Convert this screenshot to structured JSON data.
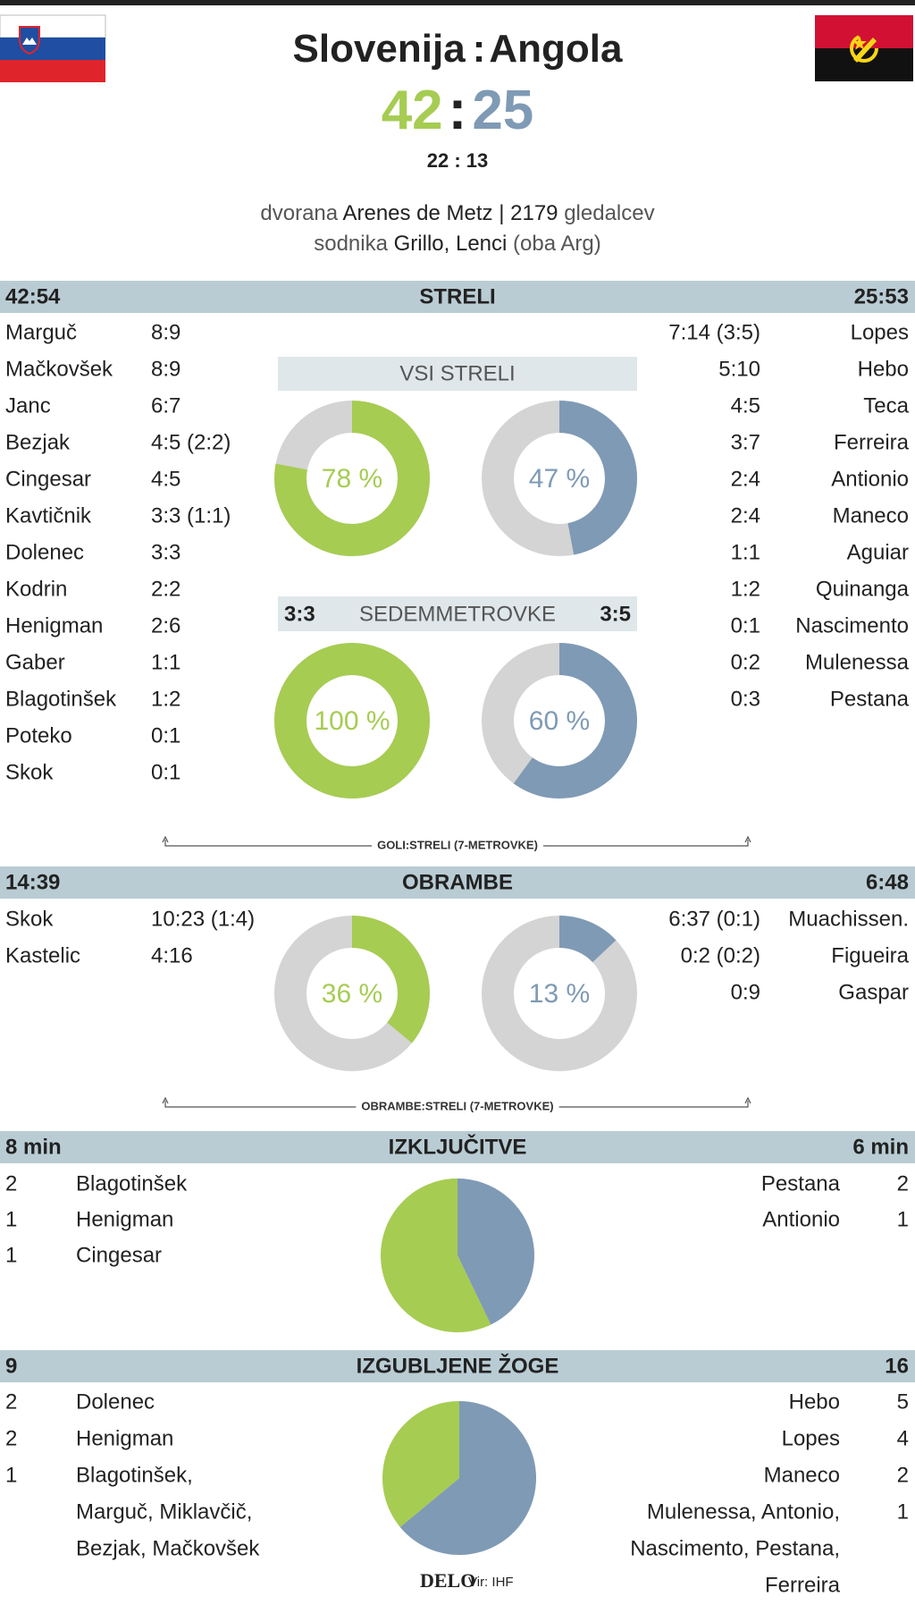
{
  "header": {
    "home": "Slovenija",
    "separator": ":",
    "away": "Angola",
    "score_home": 42,
    "score_separator": ":",
    "score_away": 25,
    "halftime": "22 : 13",
    "venue": {
      "label": "dvorana",
      "value": "Arenes de Metz | 2179",
      "suffix": "gledalcev"
    },
    "referees": {
      "label": "sodnika",
      "value": "Grillo, Lenci",
      "suffix": "(oba Arg)"
    }
  },
  "shots": {
    "home_total": "42:54",
    "title": "STRELI",
    "away_total": "25:53",
    "home_players": [
      [
        "Marguč",
        "8:9"
      ],
      [
        "Mačkovšek",
        "8:9"
      ],
      [
        "Janc",
        "6:7"
      ],
      [
        "Bezjak",
        "4:5 (2:2)"
      ],
      [
        "Cingesar",
        "4:5"
      ],
      [
        "Kavtičnik",
        "3:3 (1:1)"
      ],
      [
        "Dolenec",
        "3:3"
      ],
      [
        "Kodrin",
        "2:2"
      ],
      [
        "Henigman",
        "2:6"
      ],
      [
        "Gaber",
        "1:1"
      ],
      [
        "Blagotinšek",
        "1:2"
      ],
      [
        "Poteko",
        "0:1"
      ],
      [
        "Skok",
        "0:1"
      ]
    ],
    "away_players": [
      [
        "7:14 (3:5)",
        "Lopes"
      ],
      [
        "5:10",
        "Hebo"
      ],
      [
        "4:5",
        "Teca"
      ],
      [
        "3:7",
        "Ferreira"
      ],
      [
        "2:4",
        "Antionio"
      ],
      [
        "2:4",
        "Maneco"
      ],
      [
        "1:1",
        "Aguiar"
      ],
      [
        "1:2",
        "Quinanga"
      ],
      [
        "0:1",
        "Nascimento"
      ],
      [
        "0:2",
        "Mulenessa"
      ],
      [
        "0:3",
        "Pestana"
      ]
    ],
    "all_shots": {
      "title": "VSI STRELI",
      "home": {
        "value": 78,
        "label": "78 %"
      },
      "away": {
        "value": 47,
        "label": "47 %"
      }
    },
    "seven_m": {
      "home_total": "3:3",
      "title": "SEDEMMETROVKE",
      "away_total": "3:5",
      "home": {
        "value": 100,
        "label": "100 %"
      },
      "away": {
        "value": 60,
        "label": "60 %"
      }
    },
    "note": "GOLI:STRELI (7-METROVKE)"
  },
  "saves": {
    "home_total": "14:39",
    "title": "OBRAMBE",
    "away_total": "6:48",
    "home_players": [
      [
        "Skok",
        "10:23 (1:4)"
      ],
      [
        "Kastelic",
        "4:16"
      ]
    ],
    "away_players": [
      [
        "6:37 (0:1)",
        "Muachissen."
      ],
      [
        "0:2 (0:2)",
        "Figueira"
      ],
      [
        "0:9",
        "Gaspar"
      ]
    ],
    "home": {
      "value": 36,
      "label": "36 %"
    },
    "away": {
      "value": 13,
      "label": "13 %"
    },
    "note": "OBRAMBE:STRELI (7-METROVKE)"
  },
  "exclusions": {
    "home_total": {
      "value": 8,
      "label": "8 min"
    },
    "title": "IZKLJUČITVE",
    "away_total": {
      "value": 6,
      "label": "6 min"
    },
    "home_players": [
      [
        2,
        [
          "Blagotinšek"
        ]
      ],
      [
        1,
        [
          "Henigman"
        ]
      ],
      [
        1,
        [
          "Cingesar"
        ]
      ]
    ],
    "away_players": [
      [
        2,
        [
          "Pestana"
        ]
      ],
      [
        1,
        [
          "Antionio"
        ]
      ]
    ]
  },
  "turnovers": {
    "home_total": 9,
    "title": "IZGUBLJENE ŽOGE",
    "away_total": 16,
    "home_players": [
      [
        2,
        [
          "Dolenec"
        ]
      ],
      [
        2,
        [
          "Henigman"
        ]
      ],
      [
        1,
        [
          "Blagotinšek,",
          "Marguč, Miklavčič,",
          "Bezjak, Mačkovšek"
        ]
      ]
    ],
    "away_players": [
      [
        5,
        [
          "Hebo"
        ]
      ],
      [
        4,
        [
          "Lopes"
        ]
      ],
      [
        2,
        [
          "Maneco"
        ]
      ],
      [
        1,
        [
          "Mulenessa, Antonio,",
          "Nascimento, Pestana,",
          "Ferreira"
        ]
      ]
    ]
  },
  "footer": {
    "brand": "DELO",
    "source": "Vir: IHF"
  }
}
